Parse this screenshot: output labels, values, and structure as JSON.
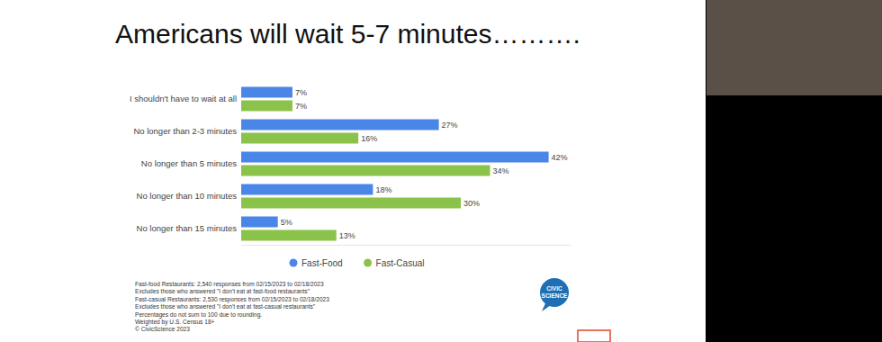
{
  "chart_data": {
    "type": "bar",
    "title": "Americans will wait 5-7 minutes……….",
    "orientation": "horizontal",
    "categories": [
      "I shouldn't have to wait at all",
      "No longer than 2-3 minutes",
      "No longer than 5 minutes",
      "No longer than 10 minutes",
      "No longer than 15 minutes"
    ],
    "series": [
      {
        "name": "Fast-Food",
        "color": "#4a86e8",
        "values": [
          7,
          27,
          42,
          18,
          5
        ],
        "value_labels": [
          "7%",
          "27%",
          "42%",
          "18%",
          "5%"
        ]
      },
      {
        "name": "Fast-Casual",
        "color": "#8bc34a",
        "values": [
          7,
          16,
          34,
          30,
          13
        ],
        "value_labels": [
          "7%",
          "16%",
          "34%",
          "30%",
          "13%"
        ]
      }
    ],
    "xlim": [
      0,
      45
    ],
    "data_labels": true,
    "tick_labels": "y",
    "legend": "bottom",
    "annotations": [
      "Fast-food Restaurants: 2,540 responses from 02/15/2023 to 02/18/2023",
      "Excludes those who answered \"I don't eat at fast-food restaurants\"",
      "Fast-casual Restaurants: 2,530 responses from 02/15/2023 to 02/18/2023",
      "Excludes those who answered \"I don't eat at fast-casual restaurants\"",
      "Percentages do not sum to 100 due to rounding.",
      "Weighted by U.S. Census 18+",
      "© CivicScience 2023"
    ],
    "logo": "CIVIC SCIENCE"
  }
}
